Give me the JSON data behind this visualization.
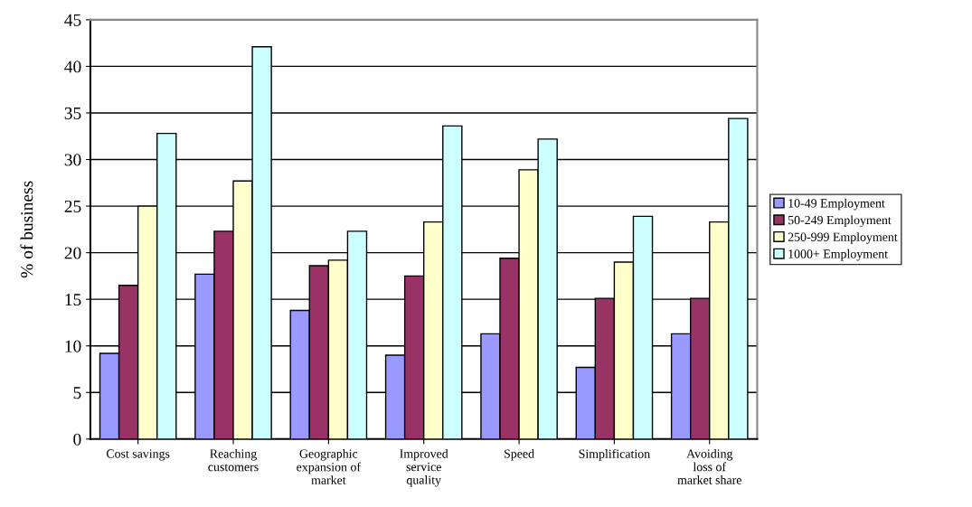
{
  "chart_data": {
    "type": "bar",
    "ylabel": "% of business",
    "categories": [
      "Cost savings",
      "Reaching\ncustomers",
      "Geographic\nexpansion of\nmarket",
      "Improved\nservice\nquality",
      "Speed",
      "Simplification",
      "Avoiding\nloss of\nmarket share"
    ],
    "series": [
      {
        "name": "10-49 Employment",
        "color": "#9999ff",
        "values": [
          9.2,
          17.7,
          13.8,
          9.0,
          11.3,
          7.7,
          11.3
        ]
      },
      {
        "name": "50-249 Employment",
        "color": "#993366",
        "values": [
          16.5,
          22.3,
          18.6,
          17.5,
          19.4,
          15.1,
          15.1
        ]
      },
      {
        "name": "250-999 Employment",
        "color": "#ffffcc",
        "values": [
          25.0,
          27.7,
          19.2,
          23.3,
          28.9,
          19.0,
          23.3
        ]
      },
      {
        "name": "1000+ Employment",
        "color": "#ccffff",
        "values": [
          32.8,
          42.1,
          22.3,
          33.6,
          32.2,
          23.9,
          34.4
        ]
      }
    ],
    "ylim": [
      0,
      45
    ],
    "yticks": [
      0,
      5,
      10,
      15,
      20,
      25,
      30,
      35,
      40,
      45
    ],
    "grid": "y",
    "legend": "right"
  }
}
